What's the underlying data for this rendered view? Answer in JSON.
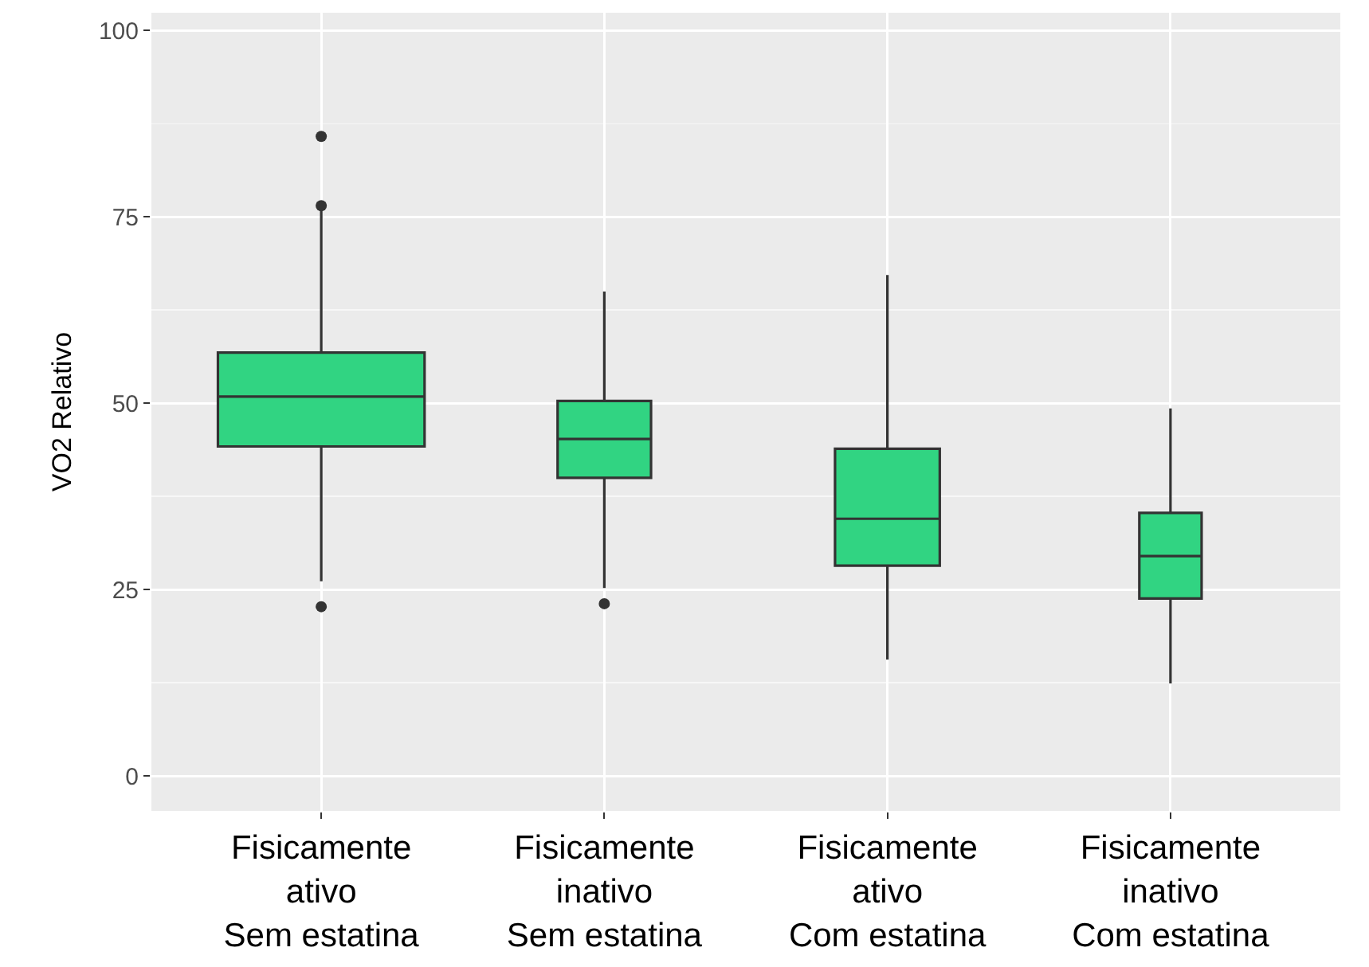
{
  "chart_data": {
    "type": "box",
    "ylabel": "VO2 Relativo",
    "categories": [
      "Fisicamente\nativo\nSem estatina",
      "Fisicamente\ninativo\nSem estatina",
      "Fisicamente\nativo\nCom estatina",
      "Fisicamente\ninativo\nCom estatina"
    ],
    "boxes": [
      {
        "low": 26.1,
        "q1": 44.2,
        "median": 50.9,
        "q3": 56.8,
        "high": 76.5,
        "outliers": [
          85.8,
          76.5,
          22.7
        ]
      },
      {
        "low": 25.2,
        "q1": 40.0,
        "median": 45.2,
        "q3": 50.3,
        "high": 65.0,
        "outliers": [
          23.1
        ]
      },
      {
        "low": 15.6,
        "q1": 28.2,
        "median": 34.5,
        "q3": 43.9,
        "high": 67.2
      },
      {
        "low": 12.4,
        "q1": 23.8,
        "median": 29.5,
        "q3": 35.3,
        "high": 49.3
      }
    ],
    "color": "#31d482",
    "ylim": [
      -4.7,
      102.4
    ],
    "yticks": [
      0,
      25,
      50,
      75,
      100
    ],
    "grid": true
  }
}
